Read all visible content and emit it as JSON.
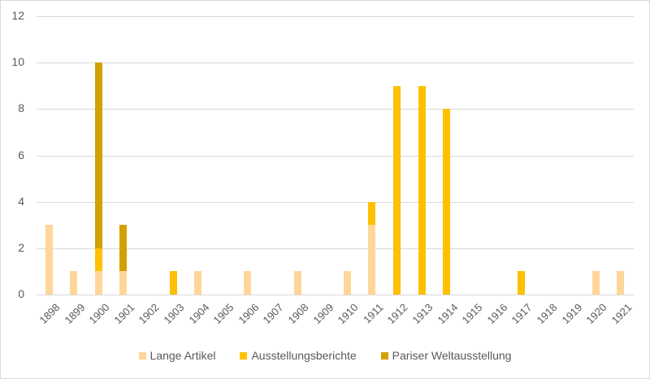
{
  "chart_data": {
    "type": "bar",
    "stacked": true,
    "title": "",
    "xlabel": "",
    "ylabel": "",
    "ylim": [
      0,
      12
    ],
    "yticks": [
      0,
      2,
      4,
      6,
      8,
      10,
      12
    ],
    "grid": true,
    "legend_position": "bottom",
    "categories": [
      "1898",
      "1899",
      "1900",
      "1901",
      "1902",
      "1903",
      "1904",
      "1905",
      "1906",
      "1907",
      "1908",
      "1909",
      "1910",
      "1911",
      "1912",
      "1913",
      "1914",
      "1915",
      "1916",
      "1917",
      "1918",
      "1919",
      "1920",
      "1921"
    ],
    "series": [
      {
        "name": "Lange Artikel",
        "color": "#FFD699",
        "values": [
          3,
          1,
          1,
          1,
          0,
          0,
          1,
          0,
          1,
          0,
          1,
          0,
          1,
          3,
          0,
          0,
          0,
          0,
          0,
          0,
          0,
          0,
          1,
          1
        ]
      },
      {
        "name": "Ausstellungsberichte",
        "color": "#FFC000",
        "values": [
          0,
          0,
          1,
          0,
          0,
          1,
          0,
          0,
          0,
          0,
          0,
          0,
          0,
          1,
          9,
          9,
          8,
          0,
          0,
          1,
          0,
          0,
          0,
          0
        ]
      },
      {
        "name": "Pariser Weltausstellung",
        "color": "#D4A000",
        "values": [
          0,
          0,
          8,
          2,
          0,
          0,
          0,
          0,
          0,
          0,
          0,
          0,
          0,
          0,
          0,
          0,
          0,
          0,
          0,
          0,
          0,
          0,
          0,
          0
        ]
      }
    ]
  },
  "legend": {
    "items": [
      {
        "label": "Lange Artikel",
        "color": "#FFD699"
      },
      {
        "label": "Ausstellungsberichte",
        "color": "#FFC000"
      },
      {
        "label": "Pariser Weltausstellung",
        "color": "#D4A000"
      }
    ]
  }
}
